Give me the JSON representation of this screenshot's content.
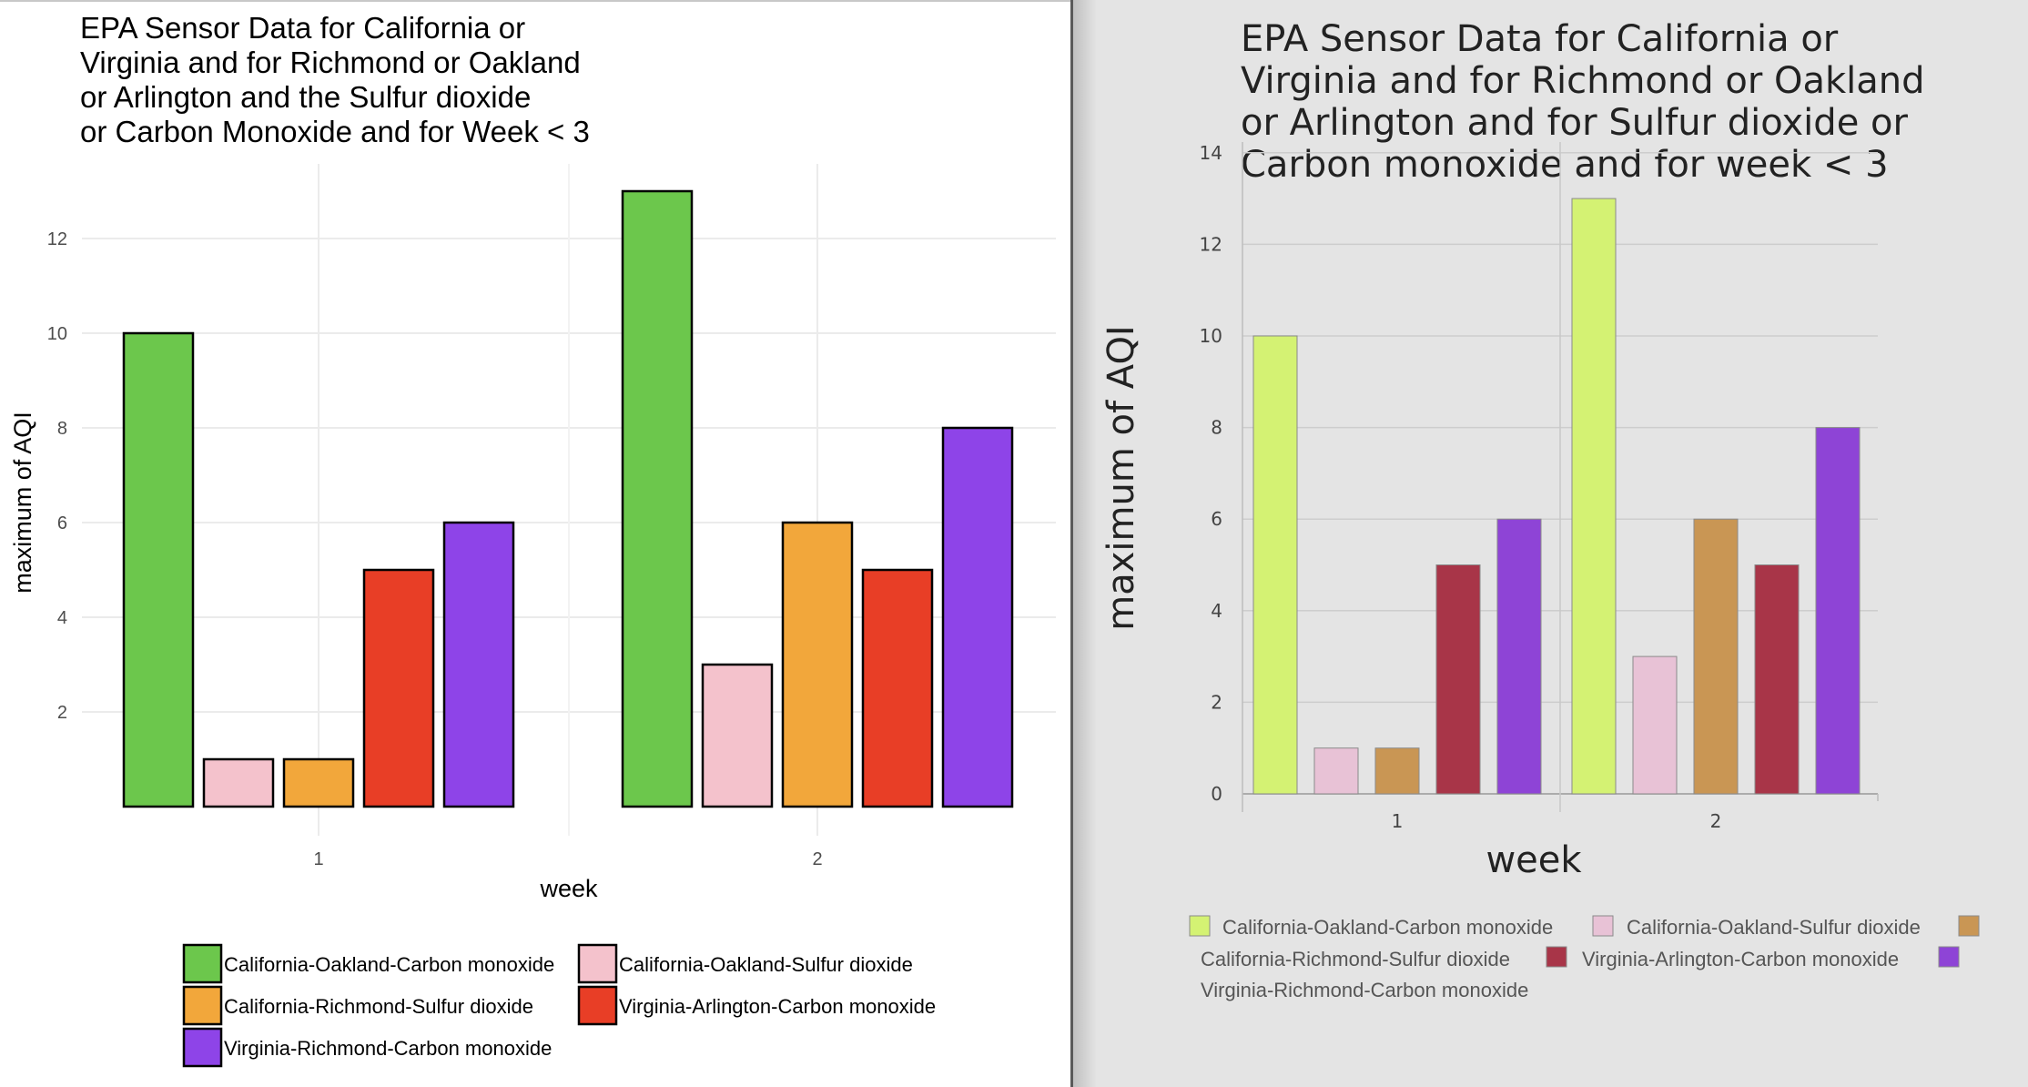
{
  "chart_data": [
    {
      "type": "bar",
      "title_lines": [
        "EPA Sensor Data for California or",
        "Virginia and for Richmond or Oakland",
        "or Arlington and the Sulfur dioxide",
        "or Carbon Monoxide and for Week < 3"
      ],
      "xlabel": "week",
      "ylabel": "maximum of AQI",
      "categories": [
        "1",
        "2"
      ],
      "y_ticks": [
        "2",
        "4",
        "6",
        "8",
        "10",
        "12"
      ],
      "ylim": [
        0,
        13.5
      ],
      "grid": true,
      "legend_position": "bottom",
      "series": [
        {
          "name": "California-Oakland-Carbon monoxide",
          "color": "#6cc74c",
          "values": [
            10,
            13
          ]
        },
        {
          "name": "California-Oakland-Sulfur dioxide",
          "color": "#f4c2cc",
          "values": [
            1,
            3
          ]
        },
        {
          "name": "California-Richmond-Sulfur dioxide",
          "color": "#f2a73b",
          "values": [
            1,
            6
          ]
        },
        {
          "name": "Virginia-Arlington-Carbon monoxide",
          "color": "#e83e26",
          "values": [
            5,
            5
          ]
        },
        {
          "name": "Virginia-Richmond-Carbon monoxide",
          "color": "#8e44e8",
          "values": [
            6,
            8
          ]
        }
      ]
    },
    {
      "type": "bar",
      "title_lines": [
        "EPA Sensor Data for California or",
        "Virginia and for Richmond or Oakland",
        "or Arlington and for Sulfur dioxide or",
        "Carbon monoxide and for week < 3"
      ],
      "xlabel": "week",
      "ylabel": "maximum of AQI",
      "categories": [
        "1",
        "2"
      ],
      "y_ticks": [
        "0",
        "2",
        "4",
        "6",
        "8",
        "10",
        "12",
        "14"
      ],
      "ylim": [
        0,
        14
      ],
      "grid": true,
      "legend_position": "bottom",
      "series": [
        {
          "name": "California-Oakland-Carbon monoxide",
          "color": "#d4f273",
          "values": [
            10,
            13
          ]
        },
        {
          "name": "California-Oakland-Sulfur dioxide",
          "color": "#e8c2d6",
          "values": [
            1,
            3
          ]
        },
        {
          "name": "California-Richmond-Sulfur dioxide",
          "color": "#c99654",
          "values": [
            1,
            6
          ]
        },
        {
          "name": "Virginia-Arlington-Carbon monoxide",
          "color": "#a83548",
          "values": [
            5,
            5
          ]
        },
        {
          "name": "Virginia-Richmond-Carbon monoxide",
          "color": "#8e44d6",
          "values": [
            6,
            8
          ]
        }
      ]
    }
  ]
}
